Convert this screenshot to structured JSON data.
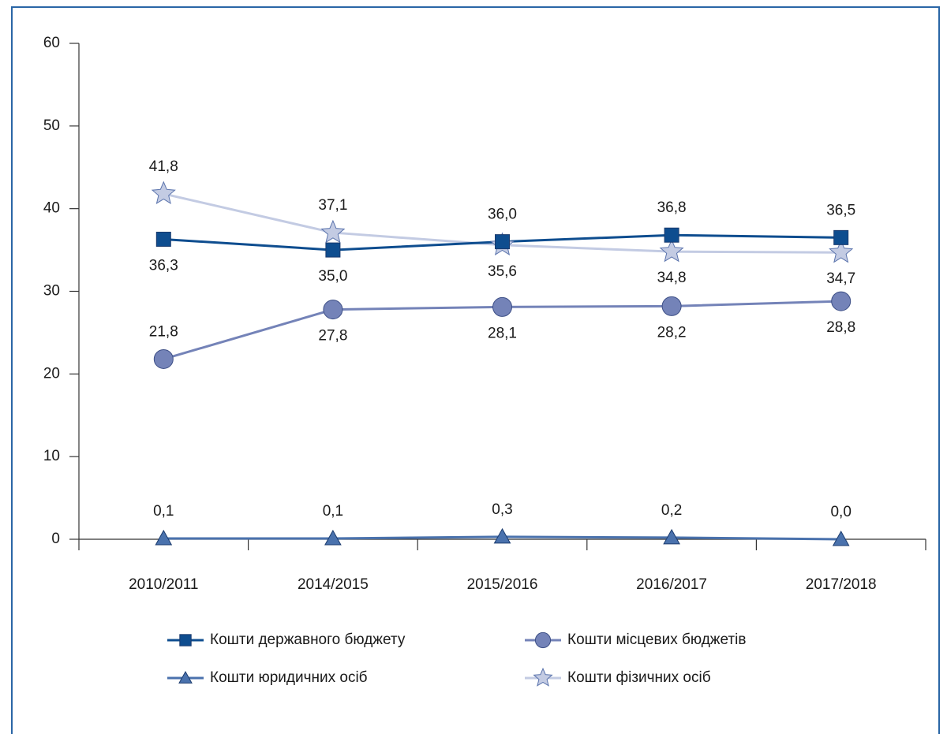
{
  "chart_data": {
    "type": "line",
    "categories": [
      "2010/2011",
      "2014/2015",
      "2015/2016",
      "2016/2017",
      "2017/2018"
    ],
    "series": [
      {
        "name": "Кошти державного бюджету",
        "color": "#0e4d8f",
        "marker": "square",
        "values": [
          36.3,
          35.0,
          36.0,
          36.8,
          36.5
        ],
        "value_labels": [
          "36,3",
          "35,0",
          "36,0",
          "36,8",
          "36,5"
        ]
      },
      {
        "name": "Кошти місцевих бюджетів",
        "color": "#7483b8",
        "marker": "circle",
        "values": [
          21.8,
          27.8,
          28.1,
          28.2,
          28.8
        ],
        "value_labels": [
          "21,8",
          "27,8",
          "28,1",
          "28,2",
          "28,8"
        ]
      },
      {
        "name": "Кошти юридичних осіб",
        "color": "#4a72ad",
        "marker": "triangle",
        "values": [
          0.1,
          0.1,
          0.3,
          0.2,
          0.0
        ],
        "value_labels": [
          "0,1",
          "0,1",
          "0,3",
          "0,2",
          "0,0"
        ]
      },
      {
        "name": "Кошти фізичних осіб",
        "color": "#c3cbe3",
        "marker": "star",
        "values": [
          41.8,
          37.1,
          35.6,
          34.8,
          34.7
        ],
        "value_labels": [
          "41,8",
          "37,1",
          "35,6",
          "34,8",
          "34,7"
        ]
      }
    ],
    "ylim": [
      0,
      60
    ],
    "yticks": [
      0,
      10,
      20,
      30,
      40,
      50,
      60
    ],
    "grid": false
  }
}
